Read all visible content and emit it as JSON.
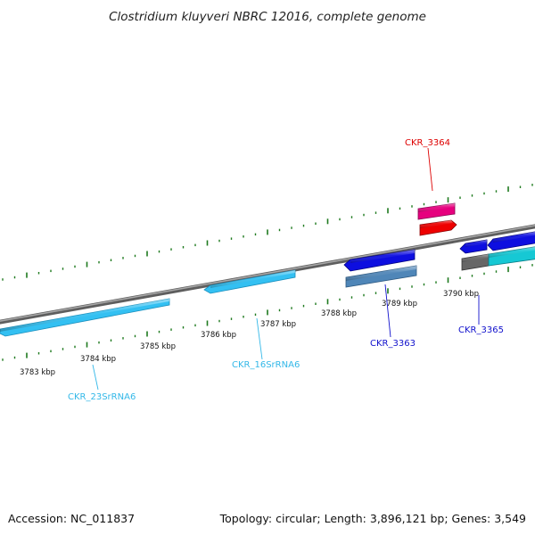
{
  "title": "Clostridium kluyveri NBRC 12016, complete genome",
  "footer": {
    "accession": "Accession: NC_011837",
    "topology": "Topology: circular; Length: 3,896,121 bp; Genes: 3,549"
  },
  "colors": {
    "backbone": "#7f7f7f",
    "tick": "#1e7a1e",
    "rrna": "#33c0f2",
    "cds_blue": "#0d0ee0",
    "cds_steel": "#4f86b8",
    "cds_magenta": "#e6007e",
    "cds_red": "#ee0000",
    "cds_grey": "#666666",
    "cds_teal": "#16c8d4"
  },
  "tick_labels": [
    "3783 kbp",
    "3784 kbp",
    "3785 kbp",
    "3786 kbp",
    "3787 kbp",
    "3788 kbp",
    "3789 kbp",
    "3790 kbp"
  ],
  "gene_labels": [
    {
      "name": "CKR_3364",
      "color": "#dd0000"
    },
    {
      "name": "CKR_3363",
      "color": "#1010cc"
    },
    {
      "name": "CKR_3365",
      "color": "#1010cc"
    },
    {
      "name": "CKR_16SrRNA6",
      "color": "#33b8e8"
    },
    {
      "name": "CKR_23SrRNA6",
      "color": "#33b8e8"
    }
  ]
}
